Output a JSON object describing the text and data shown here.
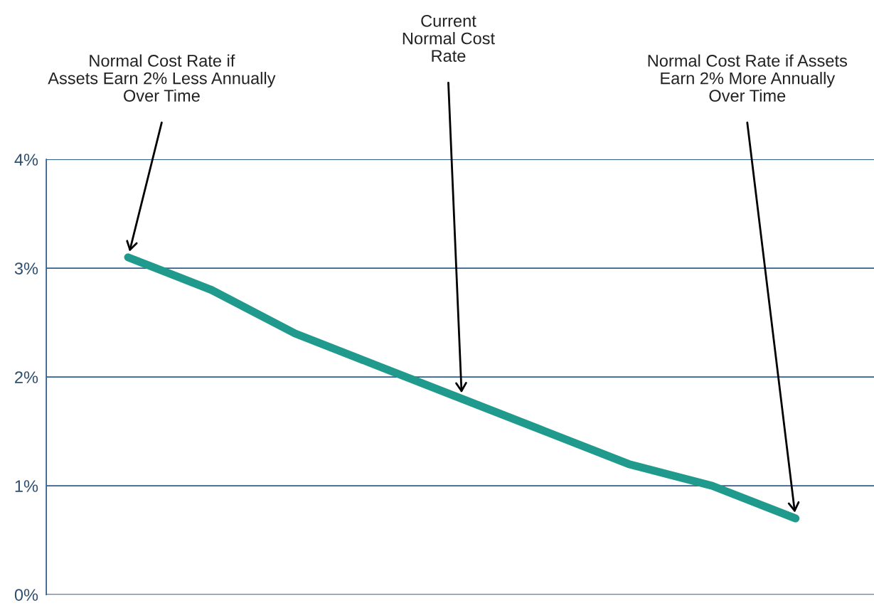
{
  "chart_data": {
    "type": "line",
    "categories": [
      null,
      null,
      null,
      null,
      null,
      null,
      null,
      null,
      null
    ],
    "series": [
      {
        "color": "#1f9a8c",
        "values": [
          3.1,
          2.8,
          2.4,
          2.1,
          1.8,
          1.5,
          1.2,
          1.0,
          0.7
        ]
      }
    ],
    "ylim": [
      0,
      4
    ],
    "yticks": [
      {
        "value": 0,
        "label": "0%"
      },
      {
        "value": 1,
        "label": "1%"
      },
      {
        "value": 2,
        "label": "2%"
      },
      {
        "value": 3,
        "label": "3%"
      },
      {
        "value": 4,
        "label": "4%"
      }
    ],
    "grid": "y",
    "legend": false,
    "marker": "none",
    "line_style": "solid",
    "tick_labels": "y",
    "annotations": [
      "Normal Cost Rate if\nAssets Earn 2% Less Annually\nOver Time",
      "Current\nNormal Cost\nRate",
      "Normal Cost Rate if Assets\nEarn 2% More Annually\nOver Time"
    ]
  }
}
